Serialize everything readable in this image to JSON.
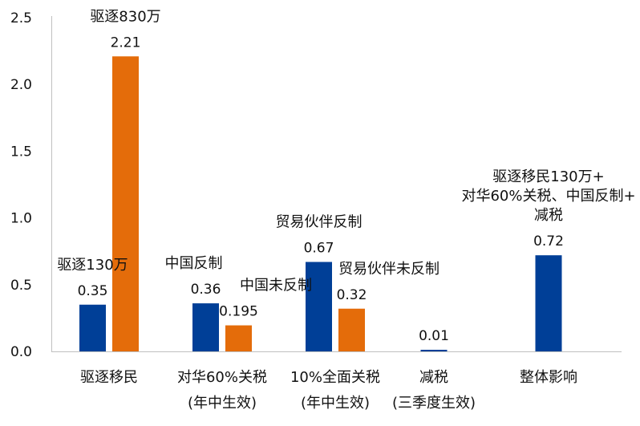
{
  "chart_data": {
    "type": "bar",
    "ylim": [
      0,
      2.5
    ],
    "yticks": [
      "0.0",
      "0.5",
      "1.0",
      "1.5",
      "2.0",
      "2.5"
    ],
    "grid": false,
    "colors": {
      "blue": "#003f97",
      "orange": "#e46c0a",
      "axis": "#bfbfbf"
    },
    "groups": [
      {
        "label_lines": [
          "驱逐移民"
        ],
        "bars": [
          {
            "color": "blue",
            "value": 0.35,
            "value_label": "0.35",
            "annotation": [
              "驱逐130万"
            ]
          },
          {
            "color": "orange",
            "value": 2.21,
            "value_label": "2.21",
            "annotation": [
              "驱逐830万"
            ]
          }
        ]
      },
      {
        "label_lines": [
          "对华60%关税",
          "(年中生效)"
        ],
        "bars": [
          {
            "color": "blue",
            "value": 0.36,
            "value_label": "0.36",
            "annotation": [
              "中国反制"
            ]
          },
          {
            "color": "orange",
            "value": 0.195,
            "value_label": "0.195",
            "annotation": [
              "中国未反制"
            ]
          }
        ]
      },
      {
        "label_lines": [
          "10%全面关税",
          "(年中生效)"
        ],
        "bars": [
          {
            "color": "blue",
            "value": 0.67,
            "value_label": "0.67",
            "annotation": [
              "贸易伙伴反制"
            ]
          },
          {
            "color": "orange",
            "value": 0.32,
            "value_label": "0.32",
            "annotation": [
              "贸易伙伴未反制"
            ]
          }
        ]
      },
      {
        "label_lines": [
          "减税",
          "(三季度生效)"
        ],
        "bars": [
          {
            "color": "blue",
            "value": 0.01,
            "value_label": "0.01",
            "annotation": []
          }
        ]
      },
      {
        "label_lines": [
          "整体影响"
        ],
        "bars": [
          {
            "color": "blue",
            "value": 0.72,
            "value_label": "0.72",
            "annotation": [
              "驱逐移民130万+",
              "对华60%关税、中国反制+",
              "减税"
            ]
          }
        ]
      }
    ]
  }
}
